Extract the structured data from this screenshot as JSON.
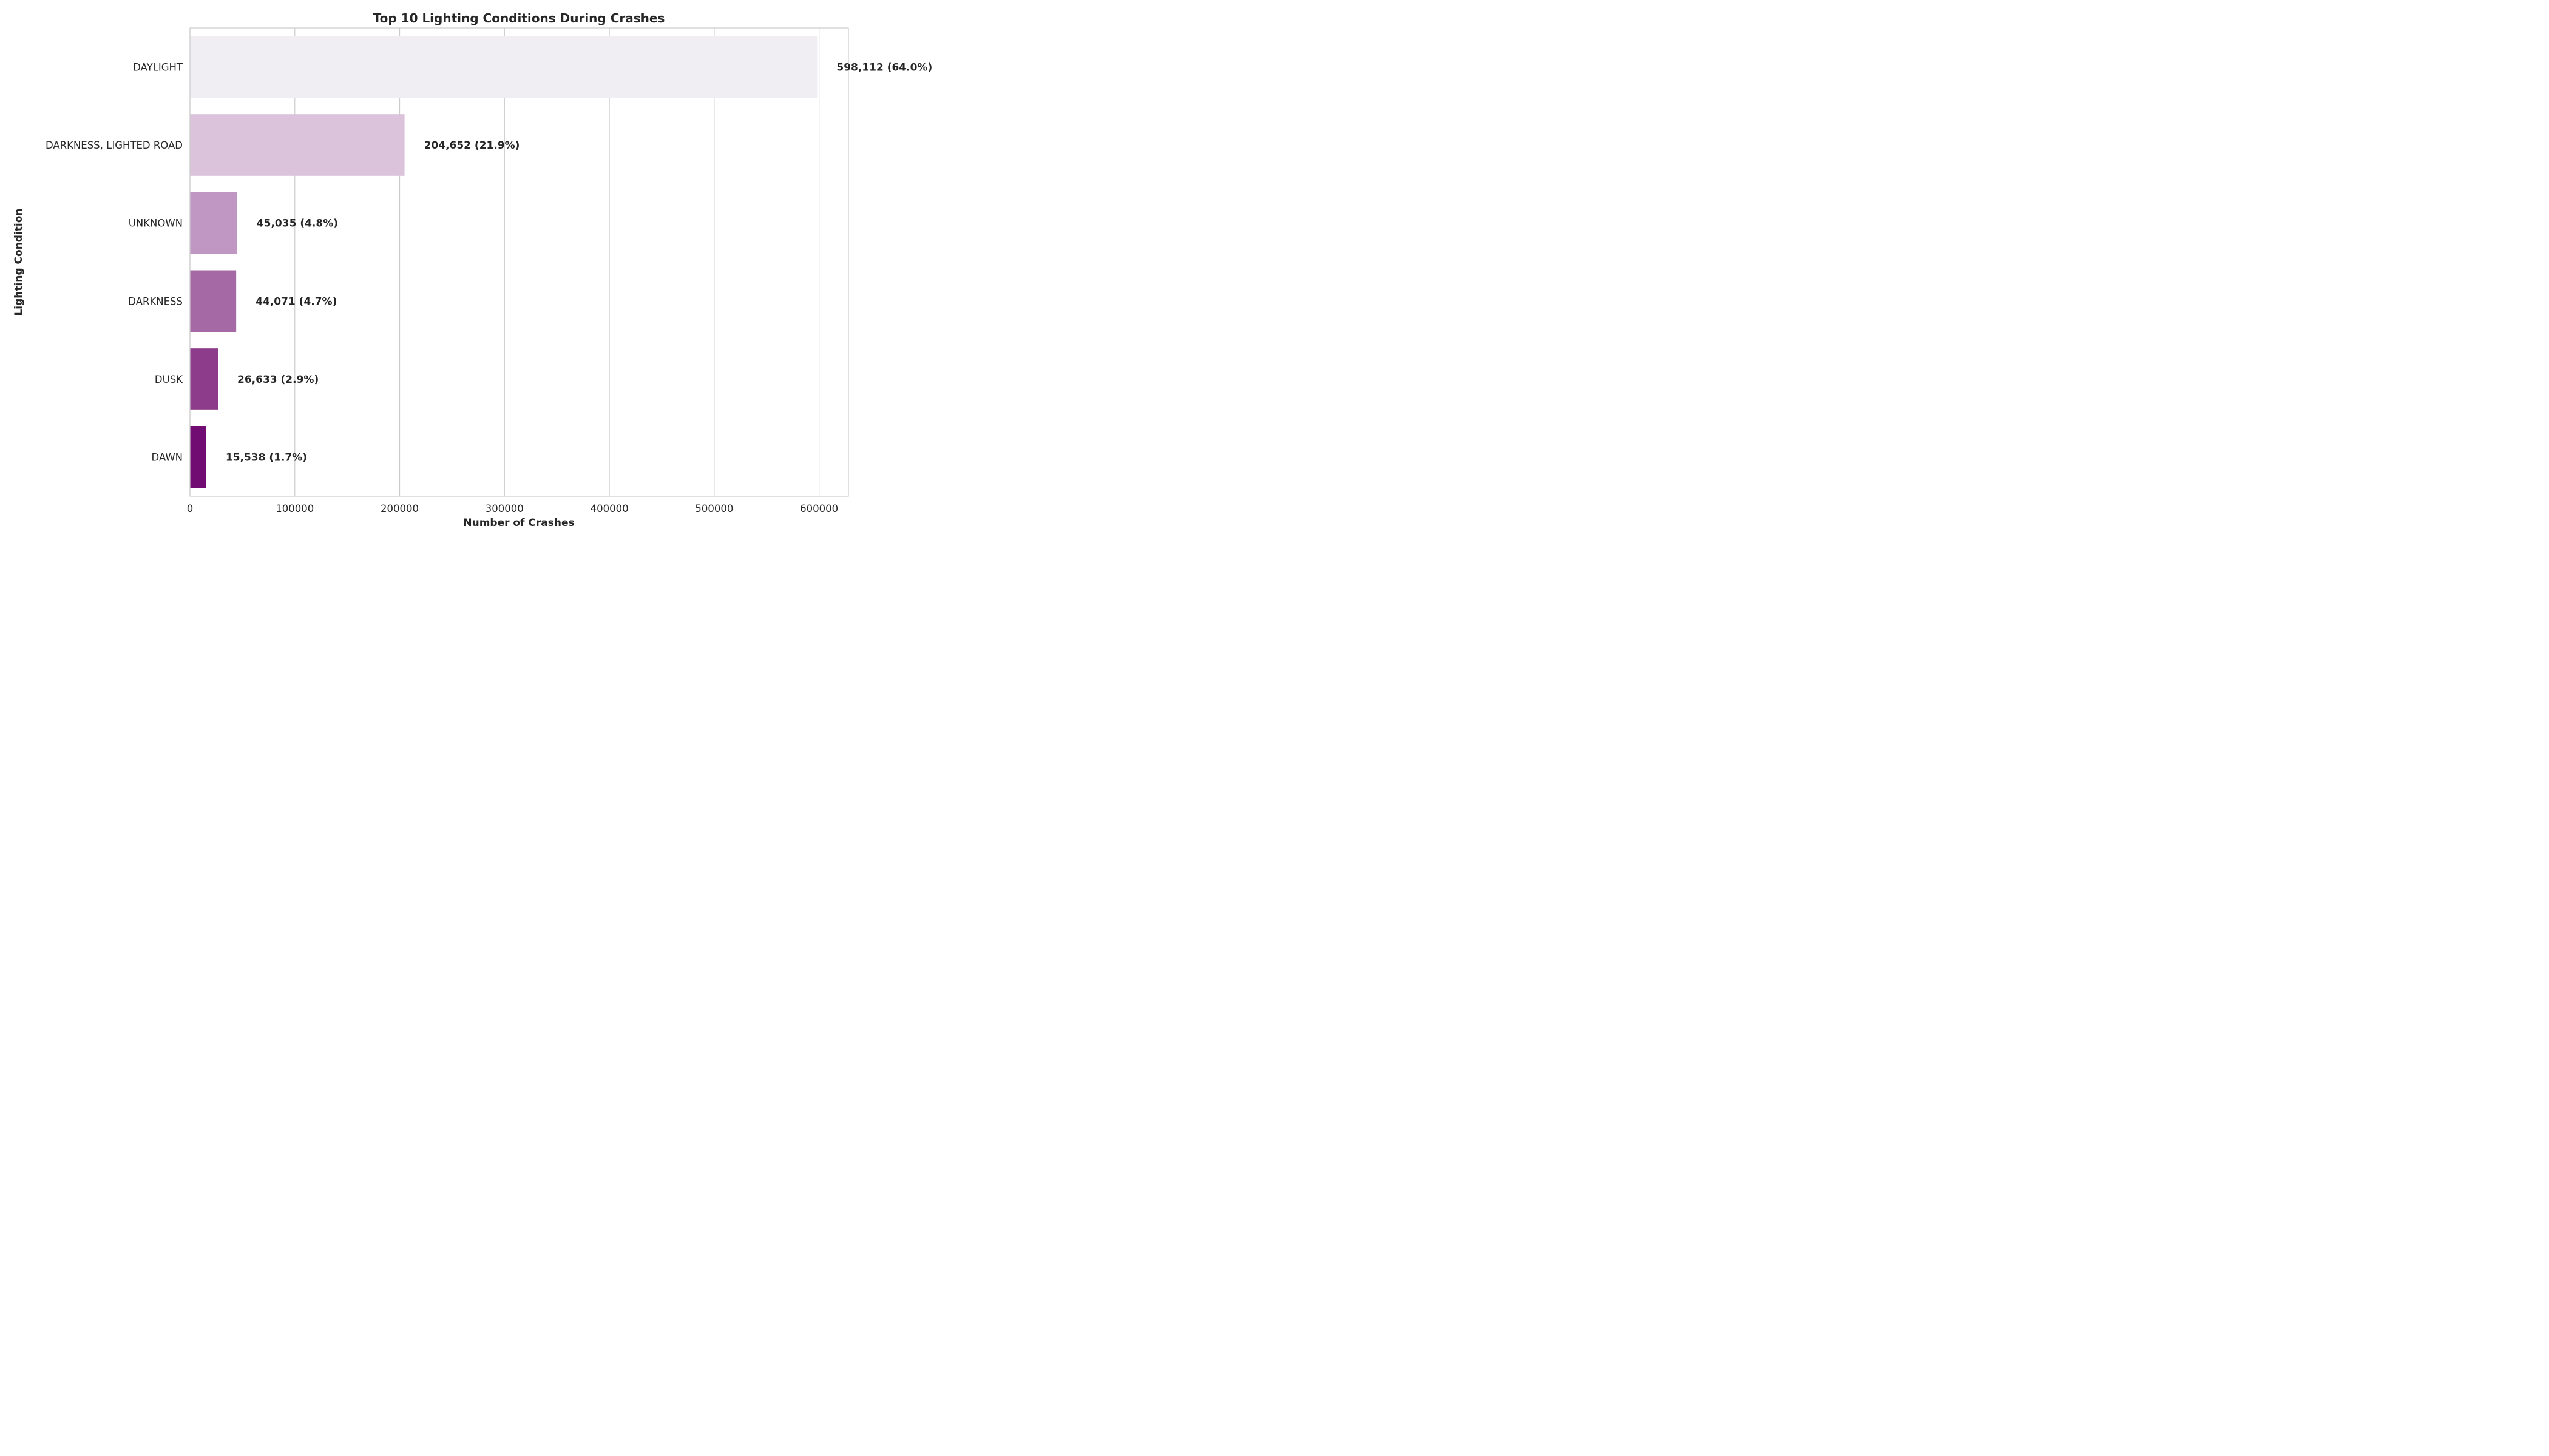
{
  "chart_data": {
    "type": "bar",
    "orientation": "horizontal",
    "title": "Top 10 Lighting Conditions During Crashes",
    "xlabel": "Number of Crashes",
    "ylabel": "Lighting Condition",
    "categories": [
      "DAYLIGHT",
      "DARKNESS, LIGHTED ROAD",
      "UNKNOWN",
      "DARKNESS",
      "DUSK",
      "DAWN"
    ],
    "values": [
      598112,
      204652,
      45035,
      44071,
      26633,
      15538
    ],
    "data_labels": [
      "598,112 (64.0%)",
      "204,652 (21.9%)",
      "45,035 (4.8%)",
      "44,071 (4.7%)",
      "26,633 (2.9%)",
      "15,538 (1.7%)"
    ],
    "xlim": [
      0,
      628000
    ],
    "xticks": [
      0,
      100000,
      200000,
      300000,
      400000,
      500000,
      600000
    ],
    "xtick_labels": [
      "0",
      "100000",
      "200000",
      "300000",
      "400000",
      "500000",
      "600000"
    ],
    "grid": "vertical",
    "colors": [
      "#f0eef3",
      "#dac3db",
      "#c096c3",
      "#a56aa5",
      "#8c3c8a",
      "#710d72"
    ]
  }
}
